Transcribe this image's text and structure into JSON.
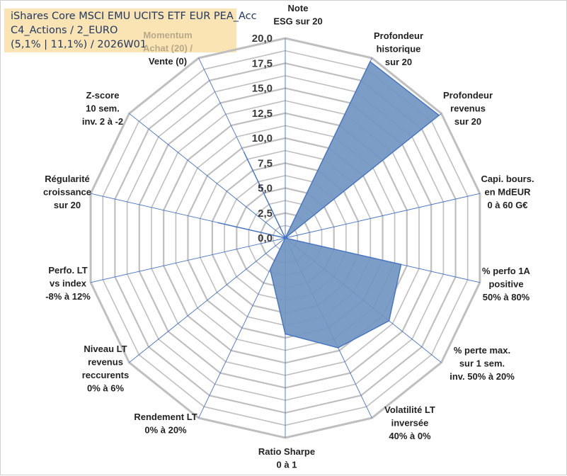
{
  "title_box": {
    "line1": "iShares Core MSCI EMU UCITS ETF EUR PEA_Acc",
    "line2": "C4_Actions / 2_EURO",
    "line3": "(5,1% | 11,1%) / 2026W01"
  },
  "chart_data": {
    "type": "radar",
    "scale": {
      "min": 0,
      "max": 20,
      "step": 2.5,
      "minor_step": 1.25
    },
    "tick_labels": [
      "0,0",
      "2,5",
      "5,0",
      "7,5",
      "10,0",
      "12,5",
      "15,0",
      "17,5",
      "20,0"
    ],
    "axes": [
      {
        "label": [
          "Note",
          "ESG sur 20"
        ],
        "value": 0
      },
      {
        "label": [
          "Profondeur",
          "historique",
          "sur 20"
        ],
        "value": 19.6
      },
      {
        "label": [
          "Profondeur",
          "revenus",
          "sur 20"
        ],
        "value": 19.7
      },
      {
        "label": [
          "Capi. bours.",
          "en MdEUR",
          "0 à 60 G€"
        ],
        "value": 0
      },
      {
        "label": [
          "% perfo 1A",
          "positive",
          "50% à 80%"
        ],
        "value": 11.9
      },
      {
        "label": [
          "% perte max.",
          "sur 1 sem.",
          "inv. 50% à 20%"
        ],
        "value": 13.3
      },
      {
        "label": [
          "Volatilité LT",
          "inversée",
          "40% à 0%"
        ],
        "value": 12.2
      },
      {
        "label": [
          "Ratio Sharpe",
          "0 à 1"
        ],
        "value": 9.6
      },
      {
        "label": [
          "Rendement LT",
          "0% à 20%"
        ],
        "value": 3.5
      },
      {
        "label": [
          "Niveau LT",
          "revenus",
          "reccurents",
          "0% à 6%"
        ],
        "value": 0
      },
      {
        "label": [
          "Perfo. LT",
          "vs index",
          "-8% à 12%"
        ],
        "value": 0
      },
      {
        "label": [
          "Régularité",
          "croissance",
          "sur 20"
        ],
        "value": 6.9
      },
      {
        "label": [
          "Z-score",
          "10 sem.",
          "inv. 2 à -2"
        ],
        "value": 0
      },
      {
        "label": [
          "Momentum",
          "Achat (20) /",
          "Vente (0)"
        ],
        "value": 9.5
      }
    ],
    "colors": {
      "fill": "#7196c2",
      "stroke": "#4472c4",
      "grid": "#bfbfbf",
      "spoke": "#4472c4"
    }
  }
}
